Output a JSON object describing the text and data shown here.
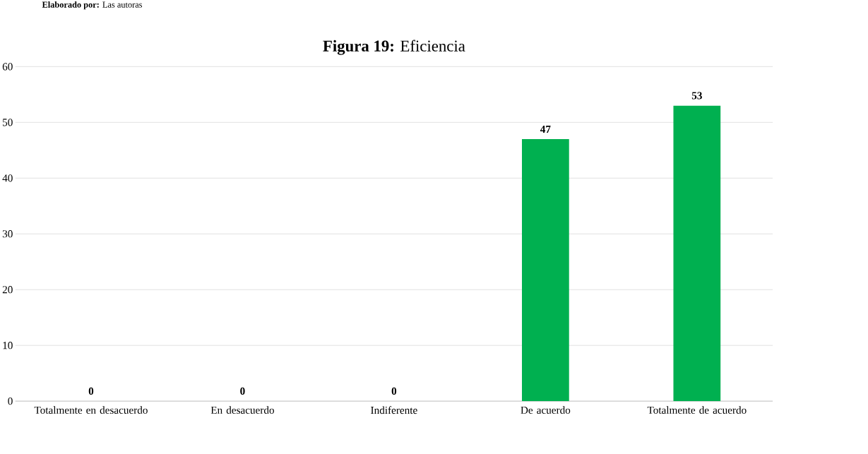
{
  "chart_data": {
    "type": "bar",
    "title": "**Figura 19:** Eficiencia",
    "annotations": [
      "**Elaborado por:** Las autoras"
    ],
    "categories": [
      "Totalmente en desacuerdo",
      "En desacuerdo",
      "Indiferente",
      "De acuerdo",
      "Totalmente de acuerdo"
    ],
    "values": [
      0,
      0,
      0,
      47,
      53
    ],
    "color": "#00b050",
    "ylim": [
      0,
      60
    ],
    "yticks": [
      0,
      10,
      20,
      30,
      40,
      50,
      60
    ],
    "grid": "y",
    "data_labels": true
  }
}
